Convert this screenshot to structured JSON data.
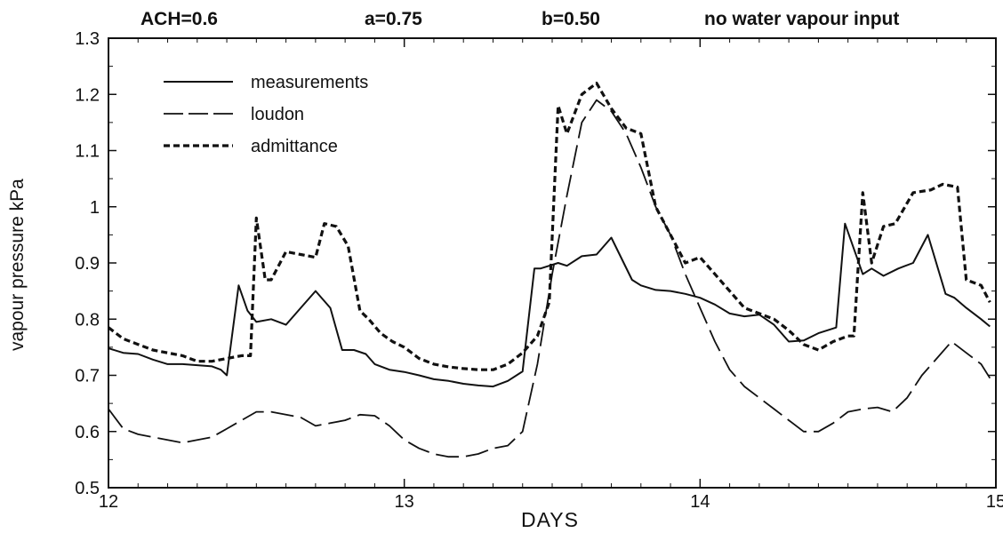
{
  "header": {
    "ach": "ACH=0.6",
    "a": "a=0.75",
    "b": "b=0.50",
    "note": "no water vapour input"
  },
  "chart_data": {
    "type": "line",
    "xlabel": "DAYS",
    "ylabel": "vapour pressure kPa",
    "xlim": [
      12,
      15
    ],
    "ylim": [
      0.5,
      1.3
    ],
    "xticks": [
      "12",
      "13",
      "14",
      "15"
    ],
    "yticks": [
      "0.5",
      "0.6",
      "0.7",
      "0.8",
      "0.9",
      "1",
      "1.1",
      "1.2",
      "1.3"
    ],
    "legend_position": "top-left",
    "grid": false,
    "series": [
      {
        "name": "measurements",
        "style": "solid",
        "x": [
          12.0,
          12.05,
          12.1,
          12.15,
          12.2,
          12.25,
          12.3,
          12.35,
          12.38,
          12.4,
          12.44,
          12.47,
          12.5,
          12.55,
          12.6,
          12.65,
          12.7,
          12.75,
          12.79,
          12.83,
          12.87,
          12.9,
          12.95,
          13.0,
          13.05,
          13.1,
          13.15,
          13.2,
          13.25,
          13.3,
          13.35,
          13.4,
          13.44,
          13.46,
          13.52,
          13.55,
          13.6,
          13.65,
          13.7,
          13.77,
          13.8,
          13.85,
          13.9,
          13.95,
          14.0,
          14.05,
          14.1,
          14.15,
          14.2,
          14.25,
          14.3,
          14.35,
          14.4,
          14.46,
          14.49,
          14.55,
          14.58,
          14.62,
          14.67,
          14.72,
          14.77,
          14.83,
          14.86,
          14.9,
          14.95,
          14.98
        ],
        "y": [
          0.748,
          0.74,
          0.738,
          0.728,
          0.72,
          0.72,
          0.718,
          0.716,
          0.71,
          0.7,
          0.86,
          0.815,
          0.795,
          0.8,
          0.79,
          0.82,
          0.85,
          0.82,
          0.745,
          0.745,
          0.738,
          0.72,
          0.71,
          0.706,
          0.7,
          0.693,
          0.69,
          0.685,
          0.682,
          0.68,
          0.69,
          0.707,
          0.89,
          0.89,
          0.9,
          0.895,
          0.912,
          0.915,
          0.945,
          0.87,
          0.86,
          0.852,
          0.85,
          0.845,
          0.838,
          0.826,
          0.81,
          0.805,
          0.808,
          0.79,
          0.76,
          0.762,
          0.775,
          0.785,
          0.97,
          0.88,
          0.89,
          0.877,
          0.89,
          0.9,
          0.95,
          0.845,
          0.838,
          0.82,
          0.8,
          0.787
        ]
      },
      {
        "name": "loudon",
        "style": "long-dash",
        "x": [
          12.0,
          12.05,
          12.1,
          12.15,
          12.2,
          12.25,
          12.3,
          12.35,
          12.4,
          12.45,
          12.5,
          12.55,
          12.6,
          12.65,
          12.7,
          12.75,
          12.8,
          12.85,
          12.9,
          12.95,
          13.0,
          13.05,
          13.1,
          13.15,
          13.2,
          13.25,
          13.3,
          13.35,
          13.4,
          13.45,
          13.5,
          13.55,
          13.6,
          13.65,
          13.7,
          13.75,
          13.8,
          13.85,
          13.9,
          13.95,
          14.0,
          14.05,
          14.1,
          14.15,
          14.2,
          14.25,
          14.3,
          14.35,
          14.4,
          14.45,
          14.5,
          14.55,
          14.6,
          14.65,
          14.7,
          14.75,
          14.8,
          14.85,
          14.9,
          14.95,
          14.98
        ],
        "y": [
          0.64,
          0.605,
          0.595,
          0.59,
          0.585,
          0.58,
          0.585,
          0.59,
          0.605,
          0.62,
          0.635,
          0.635,
          0.63,
          0.625,
          0.61,
          0.615,
          0.62,
          0.63,
          0.628,
          0.61,
          0.585,
          0.57,
          0.56,
          0.555,
          0.555,
          0.56,
          0.57,
          0.575,
          0.6,
          0.72,
          0.88,
          1.02,
          1.15,
          1.19,
          1.17,
          1.13,
          1.07,
          1.0,
          0.95,
          0.88,
          0.82,
          0.76,
          0.71,
          0.68,
          0.66,
          0.64,
          0.62,
          0.6,
          0.6,
          0.615,
          0.635,
          0.64,
          0.643,
          0.635,
          0.66,
          0.7,
          0.73,
          0.76,
          0.74,
          0.72,
          0.695
        ]
      },
      {
        "name": "admittance",
        "style": "short-dash",
        "x": [
          12.0,
          12.05,
          12.1,
          12.15,
          12.2,
          12.25,
          12.3,
          12.35,
          12.4,
          12.45,
          12.48,
          12.5,
          12.53,
          12.55,
          12.6,
          12.65,
          12.7,
          12.73,
          12.77,
          12.81,
          12.85,
          12.88,
          12.92,
          12.96,
          13.0,
          13.05,
          13.1,
          13.15,
          13.2,
          13.25,
          13.3,
          13.35,
          13.4,
          13.45,
          13.49,
          13.52,
          13.55,
          13.6,
          13.65,
          13.7,
          13.75,
          13.8,
          13.85,
          13.9,
          13.95,
          14.0,
          14.05,
          14.1,
          14.15,
          14.2,
          14.25,
          14.3,
          14.35,
          14.4,
          14.45,
          14.5,
          14.52,
          14.55,
          14.58,
          14.62,
          14.66,
          14.72,
          14.78,
          14.82,
          14.87,
          14.9,
          14.95,
          14.98
        ],
        "y": [
          0.785,
          0.765,
          0.755,
          0.745,
          0.74,
          0.735,
          0.725,
          0.725,
          0.73,
          0.735,
          0.735,
          0.98,
          0.87,
          0.87,
          0.92,
          0.915,
          0.91,
          0.97,
          0.965,
          0.93,
          0.815,
          0.8,
          0.775,
          0.76,
          0.75,
          0.73,
          0.72,
          0.715,
          0.712,
          0.71,
          0.71,
          0.72,
          0.74,
          0.77,
          0.83,
          1.18,
          1.13,
          1.2,
          1.22,
          1.175,
          1.14,
          1.13,
          1.0,
          0.95,
          0.9,
          0.91,
          0.88,
          0.85,
          0.82,
          0.81,
          0.8,
          0.78,
          0.755,
          0.745,
          0.76,
          0.77,
          0.77,
          1.025,
          0.9,
          0.965,
          0.97,
          1.025,
          1.03,
          1.04,
          1.035,
          0.87,
          0.86,
          0.83
        ]
      }
    ]
  }
}
